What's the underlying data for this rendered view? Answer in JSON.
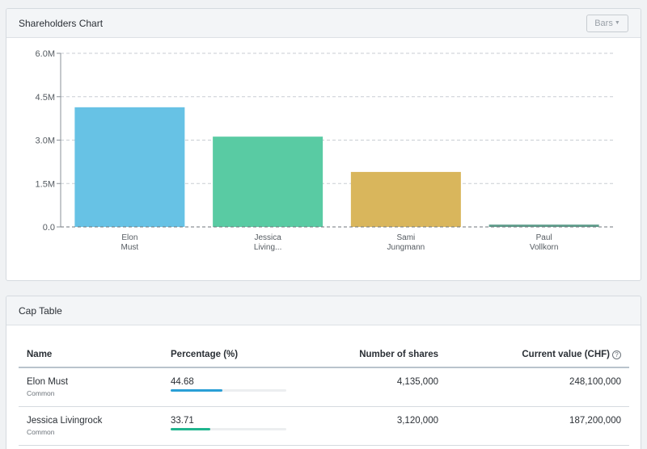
{
  "chart_card": {
    "title": "Shareholders Chart",
    "dropdown_label": "Bars"
  },
  "chart_data": {
    "type": "bar",
    "title": "Shareholders Chart",
    "categories": [
      [
        "Elon",
        "Must"
      ],
      [
        "Jessica",
        "Living..."
      ],
      [
        "Sami",
        "Jungmann"
      ],
      [
        "Paul",
        "Vollkorn"
      ]
    ],
    "values": [
      4135000,
      3120000,
      1900000,
      80000
    ],
    "colors": [
      "#67c2e5",
      "#59cba3",
      "#d9b65c",
      "#5f9e8c"
    ],
    "yticks": [
      0,
      1500000,
      3000000,
      4500000,
      6000000
    ],
    "ytick_labels": [
      "0.0",
      "1.5M",
      "3.0M",
      "4.5M",
      "6.0M"
    ],
    "ylim": [
      0,
      6000000
    ],
    "grid": true
  },
  "cap_table": {
    "title": "Cap Table",
    "headers": {
      "name": "Name",
      "percentage": "Percentage (%)",
      "shares": "Number of shares",
      "value": "Current value (CHF)"
    },
    "rows": [
      {
        "name": "Elon Must",
        "class": "Common",
        "percentage": "44.68",
        "pct_value": 44.68,
        "shares": "4,135,000",
        "value": "248,100,000",
        "color": "#2a9fd6"
      },
      {
        "name": "Jessica Livingrock",
        "class": "Common",
        "percentage": "33.71",
        "pct_value": 33.71,
        "shares": "3,120,000",
        "value": "187,200,000",
        "color": "#1fb58e"
      }
    ]
  }
}
